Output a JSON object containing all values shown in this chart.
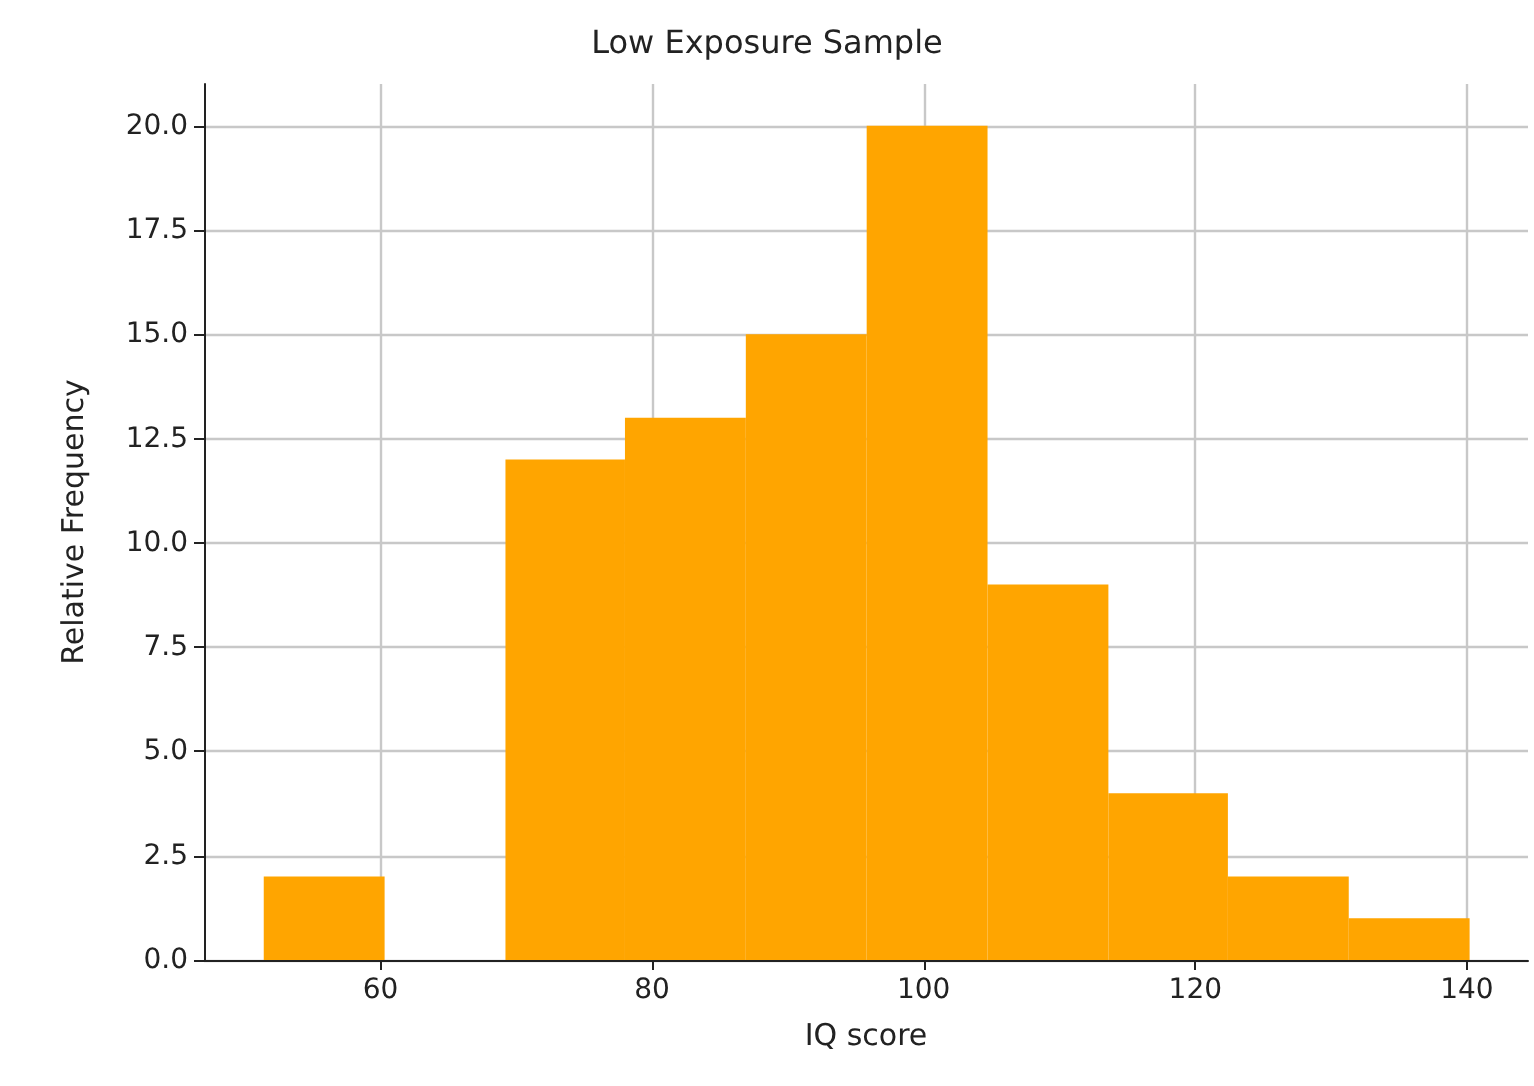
{
  "chart_data": {
    "type": "histogram",
    "title": "Low Exposure Sample",
    "xlabel": "IQ score",
    "ylabel": "Relative Frequency",
    "bins": [
      51.4,
      60.3,
      69.2,
      78.0,
      86.9,
      95.8,
      104.7,
      113.6,
      122.4,
      131.3,
      140.2
    ],
    "values": [
      2,
      0,
      12,
      13,
      15,
      20,
      9,
      4,
      2,
      1
    ],
    "color": "#ffa500",
    "xlim": [
      47,
      144.5
    ],
    "xticks": [
      60,
      80,
      100,
      120,
      140
    ],
    "ylim": [
      0,
      21
    ],
    "yticks": [
      {
        "value": 0,
        "label": "0.0"
      },
      {
        "value": 2.5,
        "label": "2.5"
      },
      {
        "value": 5,
        "label": "5.0"
      },
      {
        "value": 7.5,
        "label": "7.5"
      },
      {
        "value": 10,
        "label": "10.0"
      },
      {
        "value": 12.5,
        "label": "12.5"
      },
      {
        "value": 15,
        "label": "15.0"
      },
      {
        "value": 17.5,
        "label": "17.5"
      },
      {
        "value": 20,
        "label": "20.0"
      }
    ],
    "grid": true
  }
}
